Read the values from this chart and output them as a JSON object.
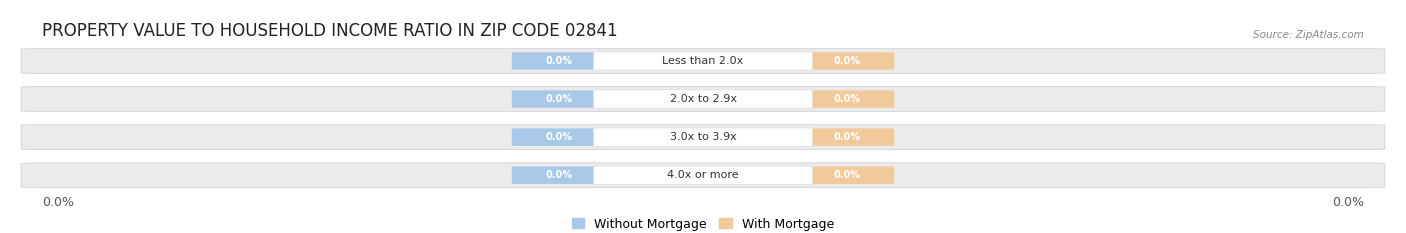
{
  "title": "PROPERTY VALUE TO HOUSEHOLD INCOME RATIO IN ZIP CODE 02841",
  "source": "Source: ZipAtlas.com",
  "categories": [
    "Less than 2.0x",
    "2.0x to 2.9x",
    "3.0x to 3.9x",
    "4.0x or more"
  ],
  "without_mortgage_vals": [
    "0.0%",
    "0.0%",
    "0.0%",
    "0.0%"
  ],
  "with_mortgage_vals": [
    "0.0%",
    "0.0%",
    "0.0%",
    "0.0%"
  ],
  "bar_color_without": "#a8c8e8",
  "bar_color_with": "#f2c99a",
  "bg_bar_color": "#ebebeb",
  "background_color": "#ffffff",
  "separator_color": "#d8d8d8",
  "title_fontsize": 12,
  "axis_label_fontsize": 9,
  "legend_fontsize": 9,
  "left_label": "0.0%",
  "right_label": "0.0%"
}
